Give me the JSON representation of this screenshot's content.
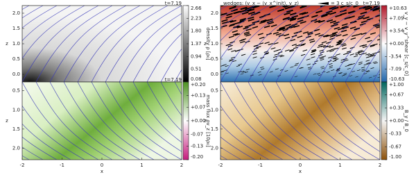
{
  "chart_data": [
    {
      "type": "heatmap",
      "annotation": "t=7.19",
      "ylabel": "z",
      "xlim": [
        -2,
        2
      ],
      "ylim": [
        -0.25,
        2.25
      ],
      "yticks": [
        {
          "value": 0,
          "label": "0.0"
        },
        0.5,
        {
          "value": 1,
          "label": "1.0"
        },
        1.5,
        {
          "value": 2,
          "label": "2.0"
        }
      ],
      "colorbar": {
        "label": "density ρ [ρ₀]",
        "lim": [
          0.08,
          2.66
        ],
        "ticks": [
          0.08,
          0.51,
          0.94,
          1.37,
          {
            "value": 1.8,
            "label": "1.80"
          },
          2.23,
          2.66
        ],
        "colors": [
          "#000000",
          "#ffffff"
        ]
      }
    },
    {
      "type": "heatmap",
      "annotation": "t=7.19",
      "ylabel": "z",
      "xlabel": "x",
      "xlim": [
        -2,
        2
      ],
      "xticks": [
        -2,
        -1,
        0,
        1,
        2
      ],
      "ylim": [
        0.27,
        2.3
      ],
      "yinverted": true,
      "yticks": [
        0.5,
        {
          "value": 1,
          "label": "1.0"
        },
        1.5,
        {
          "value": 2,
          "label": "2.0"
        }
      ],
      "colorbar": {
        "label": "mass flux ρv_z [10ρ₀]",
        "lim": [
          -0.2,
          0.2
        ],
        "ticks": [
          {
            "value": -0.2,
            "label": "-0.20"
          },
          -0.13,
          -0.07,
          {
            "value": 0,
            "label": "+0.00"
          },
          {
            "value": 0.07,
            "label": "+0.07"
          },
          {
            "value": 0.13,
            "label": "+0.13"
          },
          {
            "value": 0.2,
            "label": "+0.20"
          }
        ],
        "colors": [
          "#c51b7d",
          "#ffffff",
          "#4d9221"
        ]
      }
    },
    {
      "type": "heatmap",
      "title": "wedges: (v_x − ⟨v_x^init⟩, v_z)",
      "key_label": "= 3 c_s/c_0",
      "annotation": "t=7.19",
      "ylabel": "z",
      "xlim": [
        -2,
        2
      ],
      "ylim": [
        -0.25,
        2.25
      ],
      "yticks": [
        {
          "value": 0,
          "label": "0.0"
        },
        0.5,
        {
          "value": 1,
          "label": "1.0"
        },
        1.5,
        {
          "value": 2,
          "label": "2.0"
        }
      ],
      "colorbar": {
        "label": "v_y − v_y^shear [c_s/c_0]",
        "lim": [
          -10.63,
          10.63
        ],
        "ticks": [
          -10.63,
          -7.09,
          -3.54,
          {
            "value": 0,
            "label": "+0.00"
          },
          {
            "value": 3.54,
            "label": "+3.54"
          },
          {
            "value": 7.09,
            "label": "+7.09"
          },
          {
            "value": 10.63,
            "label": "+10.63"
          }
        ],
        "colors": [
          "#2166ac",
          "#ffffff",
          "#b2182b"
        ]
      }
    },
    {
      "type": "heatmap",
      "ylabel": "z",
      "xlabel": "x",
      "xlim": [
        -2,
        2
      ],
      "xticks": [
        -2,
        -1,
        0,
        1,
        2
      ],
      "ylim": [
        0.27,
        2.3
      ],
      "yinverted": true,
      "yticks": [
        0.5,
        {
          "value": 1,
          "label": "1.0"
        },
        1.5,
        {
          "value": 2,
          "label": "2.0"
        }
      ],
      "colorbar": {
        "label": "B_y / B_0",
        "lim": [
          -1,
          1
        ],
        "ticks": [
          {
            "value": -1,
            "label": "-1.00"
          },
          -0.67,
          -0.33,
          {
            "value": 0,
            "label": "+0.00"
          },
          {
            "value": 0.33,
            "label": "+0.33"
          },
          {
            "value": 0.67,
            "label": "+0.67"
          },
          {
            "value": 1,
            "label": "+1.00"
          }
        ],
        "colors": [
          "#8c510a",
          "#f5f5f5",
          "#01665e"
        ]
      }
    }
  ]
}
